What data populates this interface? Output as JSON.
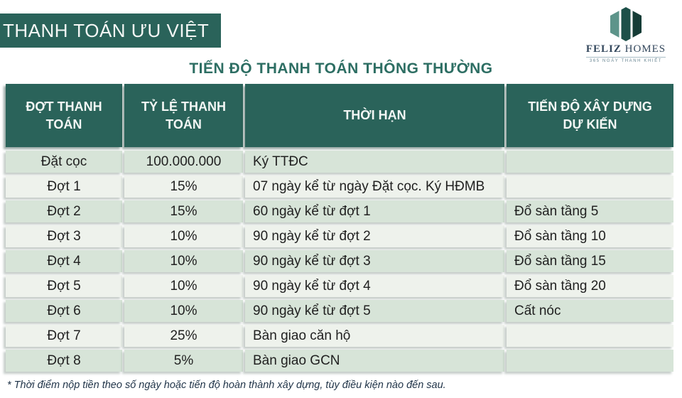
{
  "banner": {
    "title": "THANH TOÁN ƯU VIỆT"
  },
  "logo": {
    "name_feliz": "FELIZ",
    "name_homes": " HOMES",
    "tagline": "365 NGÀY THANH KHIẾT"
  },
  "page_title": "TIẾN ĐỘ THANH TOÁN THÔNG THƯỜNG",
  "table": {
    "headers": [
      "ĐỢT THANH TOÁN",
      "TỶ LỆ THANH TOÁN",
      "THỜI HẠN",
      "TIẾN ĐỘ XÂY DỰNG DỰ KIẾN"
    ],
    "rows": [
      [
        "Đặt cọc",
        "100.000.000",
        "Ký TTĐC",
        ""
      ],
      [
        "Đợt  1",
        "15%",
        "07 ngày kể từ ngày Đặt cọc. Ký HĐMB",
        ""
      ],
      [
        "Đợt 2",
        "15%",
        "60 ngày kể từ đợt 1",
        "Đổ sàn tầng 5"
      ],
      [
        "Đợt 3",
        "10%",
        "90 ngày kể từ đợt 2",
        "Đổ sàn tầng 10"
      ],
      [
        "Đợt 4",
        "10%",
        "90 ngày kể từ đợt 3",
        "Đổ sàn tầng 15"
      ],
      [
        "Đợt 5",
        "10%",
        "90 ngày kể từ đợt 4",
        "Đổ sàn tầng 20"
      ],
      [
        "Đợt 6",
        "10%",
        "90 ngày kể từ đợt 5",
        "Cất nóc"
      ],
      [
        "Đợt 7",
        "25%",
        "Bàn giao căn hộ",
        ""
      ],
      [
        "Đợt 8",
        "5%",
        "Bàn giao GCN",
        ""
      ]
    ]
  },
  "footnote": "* Thời điểm nộp tiền theo số ngày hoặc tiến độ hoàn thành xây dựng, tùy điều kiện nào đến sau.",
  "colors": {
    "teal_dark": "#2a635a",
    "title_teal": "#2d6e63",
    "row_green": "#d7e4d8",
    "row_light": "#eef2ec",
    "text_dark": "#212121",
    "logo_navy": "#33475c",
    "logo_teal_light": "#5d948a",
    "logo_teal_mid": "#1d5049",
    "logo_teal_dark": "#153c36"
  }
}
